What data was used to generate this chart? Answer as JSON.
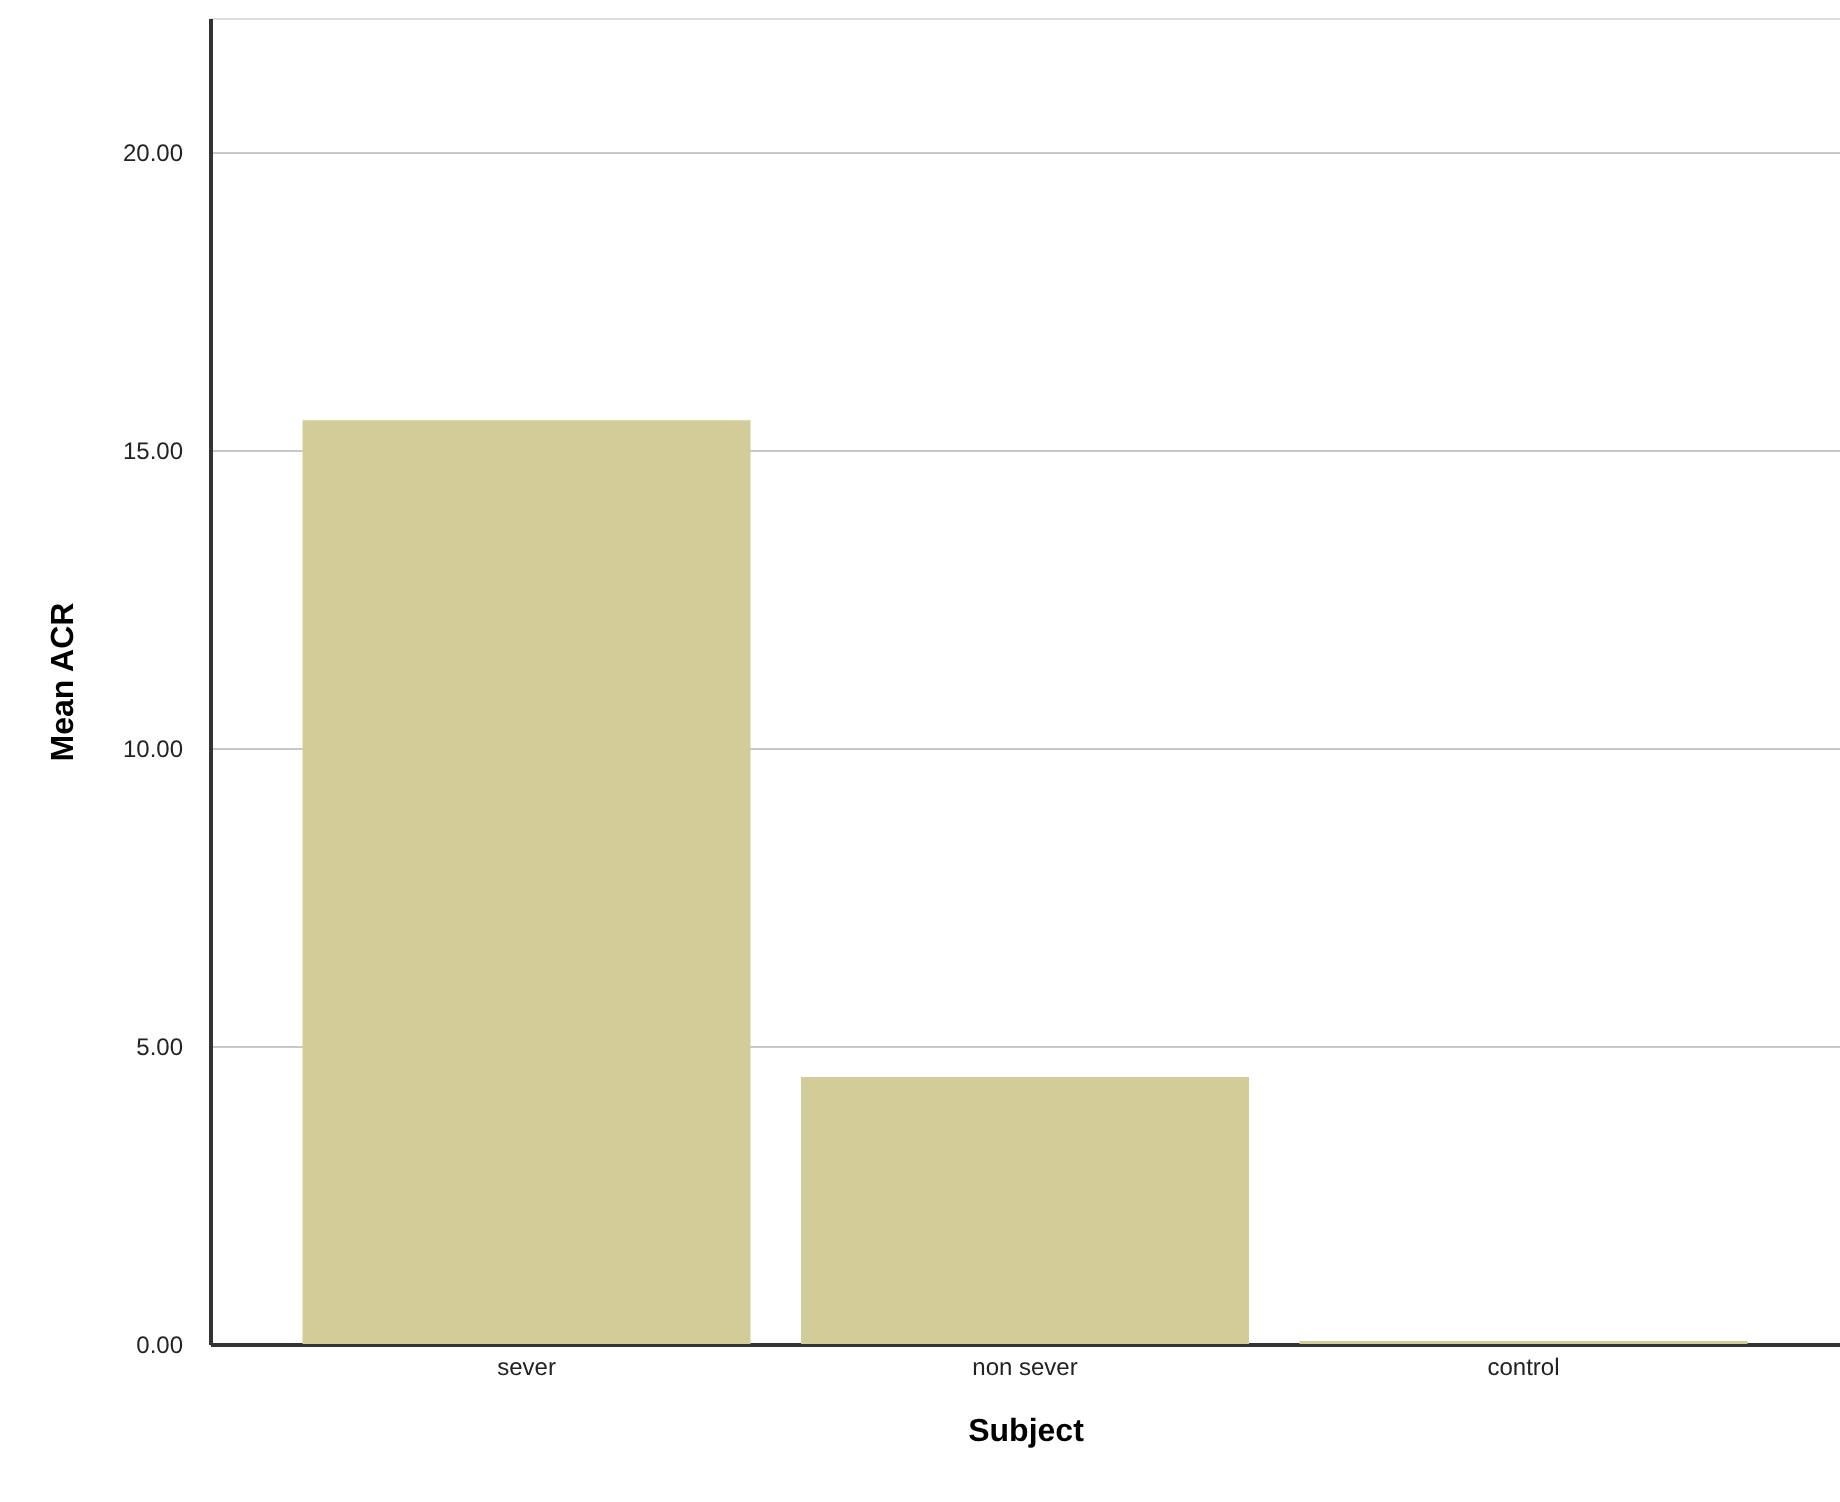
{
  "chart_data": {
    "type": "bar",
    "xlabel": "Subject",
    "ylabel": "Mean ACR",
    "categories": [
      "sever",
      "non sever",
      "control"
    ],
    "values": [
      15.5,
      4.48,
      0.05
    ],
    "color": "#d2cd98",
    "ylim": [
      0,
      22.25
    ],
    "yticks": [
      {
        "value": 0,
        "label": "0.00"
      },
      {
        "value": 5,
        "label": "5.00"
      },
      {
        "value": 10,
        "label": "10.00"
      },
      {
        "value": 15,
        "label": "15.00"
      },
      {
        "value": 20,
        "label": "20.00"
      }
    ],
    "grid": "y"
  }
}
